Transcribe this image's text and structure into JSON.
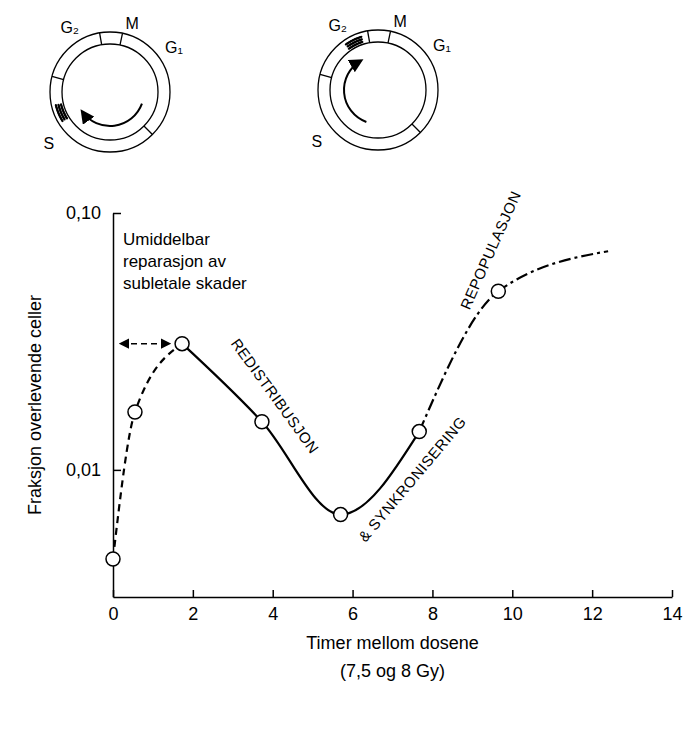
{
  "chart_data": {
    "type": "line",
    "x_label": [
      "Timer mellom dosene",
      "(7,5 og 8 Gy)"
    ],
    "y_label": "Fraksjon overlevende celler",
    "log": "y",
    "grid": false,
    "xlim": [
      0,
      14
    ],
    "xticks": [
      0,
      2,
      4,
      6,
      8,
      10,
      12,
      14
    ],
    "ylim": [
      0.0032,
      0.1
    ],
    "yticks": [
      {
        "value": 0.01,
        "label": "0,01"
      },
      {
        "value": 0.1,
        "label": "0,10"
      }
    ],
    "series": [
      {
        "type": "line",
        "line_style": "dashed",
        "color": "#000000",
        "x": [
          0,
          0.55,
          1.73
        ],
        "values": [
          0.0045,
          0.0168,
          0.031
        ]
      },
      {
        "type": "line",
        "line_style": "solid",
        "color": "#000000",
        "x": [
          1.73,
          3.73,
          5.7,
          7.67
        ],
        "values": [
          0.031,
          0.0154,
          0.0067,
          0.0141
        ]
      },
      {
        "type": "line",
        "line_style": "dashdot",
        "color": "#000000",
        "x": [
          7.67,
          9.65,
          12.4
        ],
        "values": [
          0.0141,
          0.0496,
          0.071
        ]
      },
      {
        "type": "scatter",
        "marker": "circle",
        "color": "#000000",
        "x": [
          0,
          0.55,
          1.73,
          3.73,
          5.7,
          7.67,
          9.65
        ],
        "values": [
          0.0045,
          0.0168,
          0.031,
          0.0154,
          0.0067,
          0.0141,
          0.0496
        ]
      }
    ],
    "annotations": [
      {
        "text": [
          "Umiddelbar",
          "reparasjon av",
          "subletale skader"
        ],
        "x": 0.25,
        "y": 0.075
      },
      {
        "text": "REDISTRIBUSJON",
        "x": 4.06,
        "y": 0.0194
      },
      {
        "text": "& SYNKRONISERING",
        "x": 7.49,
        "y": 0.00922
      },
      {
        "text": "REPOPULASJON",
        "x": 9.45,
        "y": 0.0717
      }
    ],
    "cell_cycle_diagrams": [
      {
        "phases": [
          "G₂",
          "M",
          "G₁",
          "S"
        ],
        "highlight": "S"
      },
      {
        "phases": [
          "G₂",
          "M",
          "G₁",
          "S"
        ],
        "highlight": "G₂"
      }
    ]
  }
}
